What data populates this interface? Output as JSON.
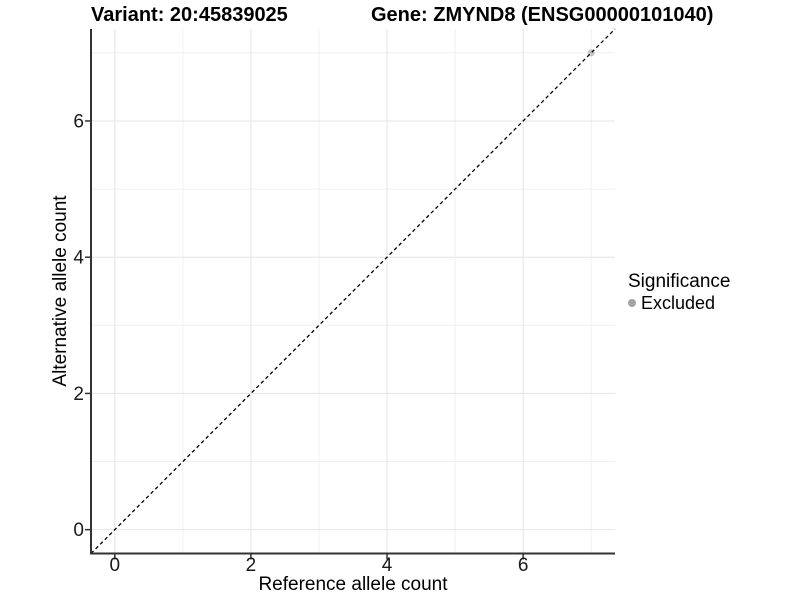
{
  "figure": {
    "title_left": "Variant: 20:45839025",
    "title_right": "Gene: ZMYND8 (ENSG00000101040)"
  },
  "chart_data": {
    "type": "scatter",
    "title": "Variant: 20:45839025   Gene: ZMYND8 (ENSG00000101040)",
    "xlabel": "Reference allele count",
    "ylabel": "Alternative allele count",
    "xlim": [
      -0.35,
      7.35
    ],
    "ylim": [
      -0.35,
      7.35
    ],
    "xticks": [
      0,
      2,
      4,
      6
    ],
    "yticks": [
      0,
      2,
      4,
      6
    ],
    "minor_xticks": [
      1,
      3,
      5,
      7
    ],
    "minor_yticks": [
      1,
      3,
      5,
      7
    ],
    "grid": "major and minor gridlines on white panel, no top/right border",
    "reference_line": {
      "kind": "identity y=x",
      "style": "dashed",
      "color": "#000000"
    },
    "series": [
      {
        "name": "Excluded",
        "marker": "circle",
        "color": "#c3c3c3",
        "points": [
          {
            "x": 7,
            "y": 7
          }
        ]
      }
    ],
    "legend": {
      "title": "Significance",
      "position": "right",
      "items": [
        {
          "label": "Excluded",
          "color": "#a3a3a3",
          "marker": "circle"
        }
      ]
    },
    "style": {
      "major_grid_color": "#e4e4e4",
      "minor_grid_color": "#f0f0f0",
      "axis_line_color": "#333333",
      "tick_color": "#333333",
      "text_color": "#1a1a1a"
    }
  }
}
